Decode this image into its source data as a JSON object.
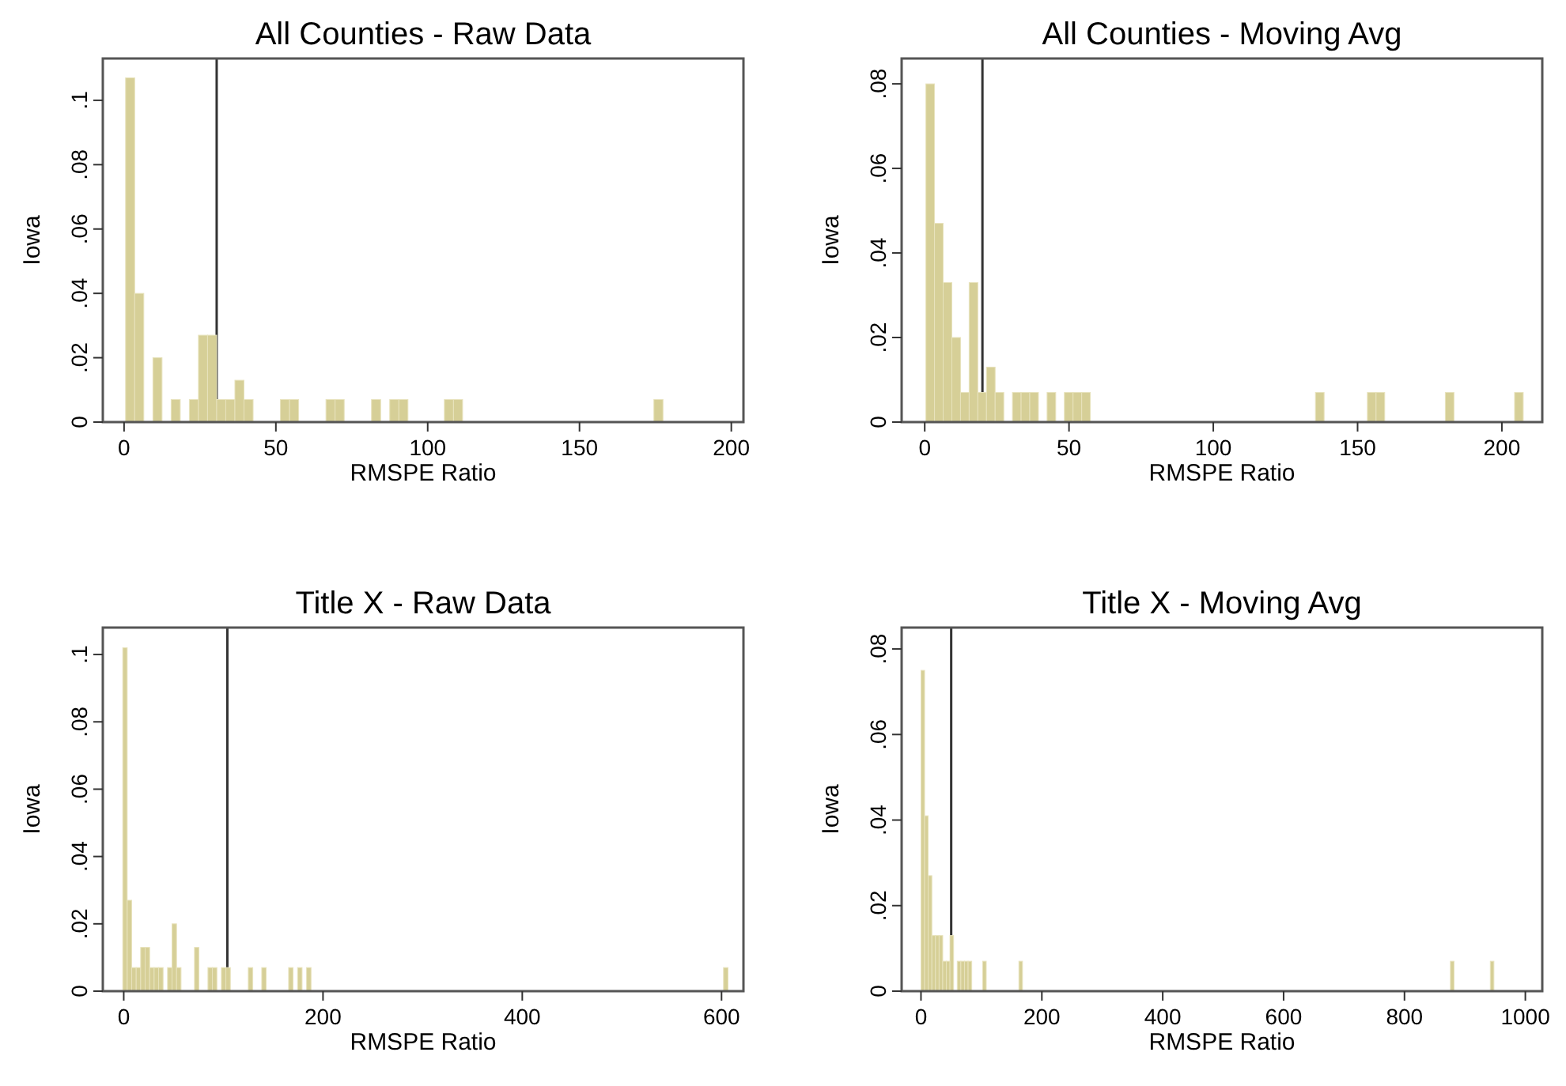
{
  "chart_data": [
    {
      "type": "histogram",
      "title": "All Counties - Raw Data",
      "xlabel": "RMSPE Ratio",
      "ylabel": "Iowa",
      "color": "#d6cf97",
      "grid": false,
      "bins": [
        0.5,
        3.5,
        6.5,
        9.5,
        12.5,
        15.5,
        18.5,
        21.5,
        24.5,
        27.5,
        30.5,
        33.5,
        36.5,
        39.5,
        42.5,
        51.5,
        54.5,
        57.5,
        66.5,
        69.5,
        72.5,
        81.5,
        84.5,
        87.5,
        90.5,
        93.5,
        105.5,
        108.5,
        111.5,
        174.5,
        177.5
      ],
      "values": [
        0.107,
        0.04,
        0,
        0.02,
        0,
        0.007,
        0,
        0.007,
        0.027,
        0.027,
        0.007,
        0.007,
        0.013,
        0.007,
        0,
        0.007,
        0.007,
        0,
        0.007,
        0.007,
        0,
        0.007,
        0,
        0.007,
        0.007,
        0,
        0.007,
        0.007,
        0,
        0.007
      ],
      "xlim": [
        -7,
        204
      ],
      "xticks": [
        0,
        50,
        100,
        150,
        200
      ],
      "ylim": [
        0,
        0.113
      ],
      "yticks": [
        {
          "value": 0,
          "label": "0"
        },
        {
          "value": 0.02,
          "label": ".02"
        },
        {
          "value": 0.04,
          "label": ".04"
        },
        {
          "value": 0.06,
          "label": ".06"
        },
        {
          "value": 0.08,
          "label": ".08"
        },
        {
          "value": 0.1,
          "label": ".1"
        }
      ],
      "ref_lines": [
        {
          "axis": "x",
          "value": 30.5,
          "color": "#333333"
        }
      ]
    },
    {
      "type": "histogram",
      "title": "All Counties - Moving Avg",
      "xlabel": "RMSPE Ratio",
      "ylabel": "Iowa",
      "color": "#d6cf97",
      "grid": false,
      "bins": [
        0.4,
        3.4,
        6.4,
        9.4,
        12.4,
        15.4,
        18.4,
        21.4,
        24.4,
        27.4,
        30.4,
        33.4,
        36.4,
        39.4,
        42.4,
        45.4,
        48.4,
        51.4,
        54.4,
        57.4,
        135.4,
        138.4,
        153.4,
        156.4,
        159.4,
        180.4,
        183.4,
        204.4,
        207.4
      ],
      "values": [
        0.08,
        0.047,
        0.033,
        0.02,
        0.007,
        0.033,
        0.007,
        0.013,
        0.007,
        0,
        0.007,
        0.007,
        0.007,
        0,
        0.007,
        0,
        0.007,
        0.007,
        0.007,
        0,
        0.007,
        0,
        0.007,
        0.007,
        0,
        0.007,
        0,
        0.007
      ],
      "xlim": [
        -8,
        214
      ],
      "xticks": [
        0,
        50,
        100,
        150,
        200
      ],
      "ylim": [
        0,
        0.086
      ],
      "yticks": [
        {
          "value": 0,
          "label": "0"
        },
        {
          "value": 0.02,
          "label": ".02"
        },
        {
          "value": 0.04,
          "label": ".04"
        },
        {
          "value": 0.06,
          "label": ".06"
        },
        {
          "value": 0.08,
          "label": ".08"
        }
      ],
      "ref_lines": [
        {
          "axis": "x",
          "value": 20,
          "color": "#333333"
        }
      ]
    },
    {
      "type": "histogram",
      "title": "Title X - Raw Data",
      "xlabel": "RMSPE Ratio",
      "ylabel": "Iowa",
      "color": "#d6cf97",
      "grid": false,
      "bins": [
        -1,
        3.5,
        8,
        12.5,
        17,
        21.5,
        26,
        30.5,
        35,
        39.5,
        44,
        48.5,
        53,
        57.5,
        71,
        75.5,
        84.5,
        89,
        93.5,
        98,
        102.5,
        107,
        125,
        129.5,
        138.5,
        143,
        165.5,
        170,
        174.5,
        179,
        183.5,
        188,
        602,
        606.5
      ],
      "values": [
        0.102,
        0.027,
        0.007,
        0.007,
        0.013,
        0.013,
        0.007,
        0.007,
        0.007,
        0,
        0.007,
        0.02,
        0.007,
        0,
        0.013,
        0,
        0.007,
        0.007,
        0,
        0.007,
        0.007,
        0,
        0.007,
        0,
        0.007,
        0,
        0.007,
        0,
        0.007,
        0,
        0.007,
        0,
        0.007
      ],
      "xlim": [
        -21,
        622
      ],
      "xticks": [
        0,
        200,
        400,
        600
      ],
      "ylim": [
        0,
        0.108
      ],
      "yticks": [
        {
          "value": 0,
          "label": "0"
        },
        {
          "value": 0.02,
          "label": ".02"
        },
        {
          "value": 0.04,
          "label": ".04"
        },
        {
          "value": 0.06,
          "label": ".06"
        },
        {
          "value": 0.08,
          "label": ".08"
        },
        {
          "value": 0.1,
          "label": ".1"
        }
      ],
      "ref_lines": [
        {
          "axis": "x",
          "value": 104,
          "color": "#333333"
        }
      ]
    },
    {
      "type": "histogram",
      "title": "Title X - Moving Avg",
      "xlabel": "RMSPE Ratio",
      "ylabel": "Iowa",
      "color": "#d6cf97",
      "grid": false,
      "bins": [
        0,
        6,
        12,
        18,
        24,
        30,
        36,
        42,
        48,
        54,
        60,
        66,
        72,
        78,
        84,
        102,
        108,
        162,
        168,
        876,
        882,
        942,
        948
      ],
      "values": [
        0.075,
        0.041,
        0.027,
        0.013,
        0.013,
        0.013,
        0.007,
        0.007,
        0.013,
        0,
        0.007,
        0.007,
        0.007,
        0.007,
        0,
        0.007,
        0,
        0.007,
        0,
        0.007,
        0,
        0.007
      ],
      "xlim": [
        -32,
        1028
      ],
      "xticks": [
        0,
        200,
        400,
        600,
        800,
        1000
      ],
      "ylim": [
        0,
        0.085
      ],
      "yticks": [
        {
          "value": 0,
          "label": "0"
        },
        {
          "value": 0.02,
          "label": ".02"
        },
        {
          "value": 0.04,
          "label": ".04"
        },
        {
          "value": 0.06,
          "label": ".06"
        },
        {
          "value": 0.08,
          "label": ".08"
        }
      ],
      "ref_lines": [
        {
          "axis": "x",
          "value": 50,
          "color": "#333333"
        }
      ]
    }
  ]
}
